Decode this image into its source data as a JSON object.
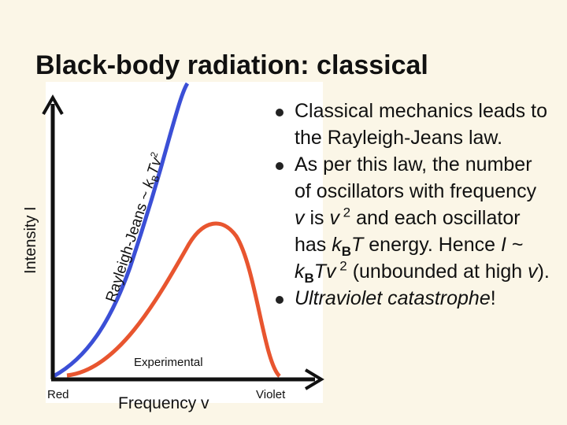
{
  "title": "Black-body radiation: classical",
  "diagram": {
    "y_axis_label": "Intensity I",
    "rayleigh_jeans_label": [
      "Rayleigh-Jeans ~ ",
      "k",
      "B",
      "Tv",
      "2"
    ],
    "experimental_label": "Experimental",
    "x_axis_label": "Frequency v",
    "red_label": "Red",
    "violet_label": "Violet"
  },
  "bullets": [
    [
      "Classical mechanics leads to the Rayleigh-Jeans law."
    ],
    [
      "As per this law, the number of oscillators with frequency ",
      "v",
      " is ",
      "v",
      " 2",
      " and each oscillator has ",
      "k",
      "B",
      "T",
      " energy. Hence ",
      "I",
      " ~ ",
      "k",
      "B",
      "Tv",
      " 2",
      " (unbounded at high ",
      "v",
      ")."
    ],
    [
      "Ultraviolet catastrophe",
      "!"
    ]
  ]
}
